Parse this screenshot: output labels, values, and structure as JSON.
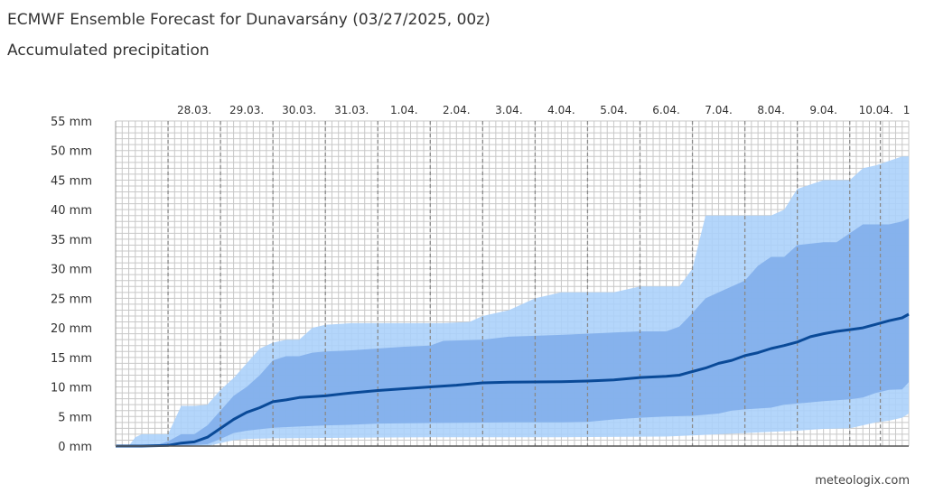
{
  "title": "ECMWF Ensemble Forecast for Dunavarsány (03/27/2025, 00z)",
  "subtitle": "Accumulated precipitation",
  "credit": "meteologix.com",
  "colors": {
    "outer_band": "#aad0fb",
    "inner_band": "#80adea",
    "median": "#0a4a98",
    "grid_minor": "#c8c8c8",
    "grid_day": "#8a8a8a"
  },
  "chart_data": {
    "type": "area",
    "xlabel": "",
    "ylabel": "",
    "y_unit": "mm",
    "ylim": [
      0,
      55
    ],
    "y_ticks": [
      "0 mm",
      "5 mm",
      "10 mm",
      "15 mm",
      "20 mm",
      "25 mm",
      "30 mm",
      "35 mm",
      "40 mm",
      "45 mm",
      "50 mm",
      "55 mm"
    ],
    "x_unit": "hours since 03/27/2025 00z",
    "xlim": [
      0,
      363
    ],
    "x_day_labels": [
      {
        "label": "28.03.",
        "hour": 36
      },
      {
        "label": "29.03.",
        "hour": 60
      },
      {
        "label": "30.03.",
        "hour": 84
      },
      {
        "label": "31.03.",
        "hour": 108
      },
      {
        "label": "1.04.",
        "hour": 132
      },
      {
        "label": "2.04.",
        "hour": 156
      },
      {
        "label": "3.04.",
        "hour": 180
      },
      {
        "label": "4.04.",
        "hour": 204
      },
      {
        "label": "5.04.",
        "hour": 228
      },
      {
        "label": "6.04.",
        "hour": 252
      },
      {
        "label": "7.04.",
        "hour": 276
      },
      {
        "label": "8.04.",
        "hour": 300
      },
      {
        "label": "9.04.",
        "hour": 324
      },
      {
        "label": "10.04.",
        "hour": 348
      },
      {
        "label": "1",
        "hour": 362
      }
    ],
    "series": [
      {
        "name": "max",
        "points": [
          [
            0,
            0
          ],
          [
            6,
            0
          ],
          [
            9,
            1.5
          ],
          [
            12,
            2
          ],
          [
            20,
            2
          ],
          [
            24,
            2
          ],
          [
            30,
            6.8
          ],
          [
            36,
            6.8
          ],
          [
            42,
            7
          ],
          [
            48,
            9.5
          ],
          [
            54,
            11.5
          ],
          [
            60,
            14
          ],
          [
            66,
            16.5
          ],
          [
            72,
            17.5
          ],
          [
            78,
            18
          ],
          [
            84,
            18
          ],
          [
            90,
            20
          ],
          [
            96,
            20.5
          ],
          [
            108,
            20.8
          ],
          [
            132,
            20.8
          ],
          [
            150,
            20.8
          ],
          [
            162,
            21
          ],
          [
            168,
            22
          ],
          [
            180,
            23
          ],
          [
            192,
            25
          ],
          [
            204,
            26
          ],
          [
            228,
            26
          ],
          [
            240,
            27
          ],
          [
            252,
            27
          ],
          [
            258,
            27
          ],
          [
            264,
            30
          ],
          [
            270,
            39
          ],
          [
            276,
            39
          ],
          [
            300,
            39
          ],
          [
            306,
            40
          ],
          [
            312,
            43.5
          ],
          [
            324,
            45
          ],
          [
            336,
            45
          ],
          [
            342,
            47
          ],
          [
            348,
            47.5
          ],
          [
            360,
            49
          ],
          [
            363,
            49
          ]
        ]
      },
      {
        "name": "75th percentile",
        "points": [
          [
            0,
            0
          ],
          [
            12,
            0
          ],
          [
            20,
            0.3
          ],
          [
            24,
            0.8
          ],
          [
            30,
            2
          ],
          [
            36,
            2
          ],
          [
            42,
            3.5
          ],
          [
            48,
            6
          ],
          [
            54,
            8.5
          ],
          [
            60,
            10
          ],
          [
            66,
            12
          ],
          [
            72,
            14.5
          ],
          [
            78,
            15.2
          ],
          [
            84,
            15.2
          ],
          [
            90,
            15.8
          ],
          [
            96,
            16
          ],
          [
            108,
            16.2
          ],
          [
            120,
            16.5
          ],
          [
            132,
            16.8
          ],
          [
            144,
            17
          ],
          [
            150,
            17.8
          ],
          [
            168,
            18
          ],
          [
            180,
            18.5
          ],
          [
            204,
            18.8
          ],
          [
            216,
            19
          ],
          [
            228,
            19.2
          ],
          [
            240,
            19.4
          ],
          [
            252,
            19.4
          ],
          [
            258,
            20.2
          ],
          [
            264,
            22.5
          ],
          [
            270,
            25
          ],
          [
            276,
            26
          ],
          [
            282,
            27
          ],
          [
            288,
            28
          ],
          [
            294,
            30.5
          ],
          [
            300,
            32
          ],
          [
            306,
            32
          ],
          [
            312,
            34
          ],
          [
            324,
            34.5
          ],
          [
            330,
            34.5
          ],
          [
            336,
            36
          ],
          [
            342,
            37.5
          ],
          [
            348,
            37.5
          ],
          [
            354,
            37.5
          ],
          [
            360,
            38
          ],
          [
            363,
            38.5
          ]
        ]
      },
      {
        "name": "median",
        "points": [
          [
            0,
            0
          ],
          [
            12,
            0
          ],
          [
            24,
            0.1
          ],
          [
            30,
            0.5
          ],
          [
            36,
            0.7
          ],
          [
            42,
            1.5
          ],
          [
            48,
            3
          ],
          [
            54,
            4.5
          ],
          [
            60,
            5.7
          ],
          [
            66,
            6.5
          ],
          [
            72,
            7.5
          ],
          [
            78,
            7.8
          ],
          [
            84,
            8.2
          ],
          [
            96,
            8.5
          ],
          [
            108,
            9
          ],
          [
            120,
            9.4
          ],
          [
            132,
            9.7
          ],
          [
            144,
            10
          ],
          [
            156,
            10.3
          ],
          [
            168,
            10.7
          ],
          [
            180,
            10.8
          ],
          [
            204,
            10.9
          ],
          [
            216,
            11
          ],
          [
            228,
            11.2
          ],
          [
            240,
            11.6
          ],
          [
            252,
            11.8
          ],
          [
            258,
            12
          ],
          [
            264,
            12.6
          ],
          [
            270,
            13.2
          ],
          [
            276,
            14
          ],
          [
            282,
            14.5
          ],
          [
            288,
            15.3
          ],
          [
            294,
            15.8
          ],
          [
            300,
            16.5
          ],
          [
            306,
            17
          ],
          [
            312,
            17.6
          ],
          [
            318,
            18.5
          ],
          [
            324,
            19
          ],
          [
            330,
            19.4
          ],
          [
            336,
            19.7
          ],
          [
            342,
            20
          ],
          [
            348,
            20.6
          ],
          [
            354,
            21.2
          ],
          [
            360,
            21.7
          ],
          [
            363,
            22.3
          ]
        ]
      },
      {
        "name": "25th percentile",
        "points": [
          [
            0,
            0
          ],
          [
            30,
            0
          ],
          [
            42,
            0.3
          ],
          [
            48,
            1.2
          ],
          [
            54,
            2.2
          ],
          [
            60,
            2.6
          ],
          [
            72,
            3.1
          ],
          [
            84,
            3.3
          ],
          [
            96,
            3.5
          ],
          [
            108,
            3.6
          ],
          [
            120,
            3.8
          ],
          [
            144,
            3.9
          ],
          [
            180,
            4
          ],
          [
            204,
            4
          ],
          [
            216,
            4.1
          ],
          [
            228,
            4.5
          ],
          [
            240,
            4.8
          ],
          [
            252,
            5
          ],
          [
            264,
            5.1
          ],
          [
            270,
            5.3
          ],
          [
            276,
            5.5
          ],
          [
            282,
            6
          ],
          [
            288,
            6.2
          ],
          [
            300,
            6.5
          ],
          [
            306,
            7
          ],
          [
            312,
            7.2
          ],
          [
            318,
            7.4
          ],
          [
            324,
            7.6
          ],
          [
            336,
            7.9
          ],
          [
            342,
            8.2
          ],
          [
            348,
            9
          ],
          [
            354,
            9.5
          ],
          [
            360,
            9.6
          ],
          [
            363,
            10.8
          ]
        ]
      },
      {
        "name": "min",
        "points": [
          [
            0,
            0
          ],
          [
            42,
            0
          ],
          [
            48,
            0.5
          ],
          [
            54,
            1
          ],
          [
            60,
            1.2
          ],
          [
            72,
            1.3
          ],
          [
            108,
            1.4
          ],
          [
            144,
            1.5
          ],
          [
            204,
            1.5
          ],
          [
            252,
            1.6
          ],
          [
            264,
            1.8
          ],
          [
            276,
            2
          ],
          [
            288,
            2.2
          ],
          [
            300,
            2.4
          ],
          [
            312,
            2.6
          ],
          [
            324,
            2.9
          ],
          [
            336,
            3
          ],
          [
            348,
            4
          ],
          [
            354,
            4.3
          ],
          [
            360,
            4.8
          ],
          [
            363,
            5.5
          ]
        ]
      }
    ]
  }
}
